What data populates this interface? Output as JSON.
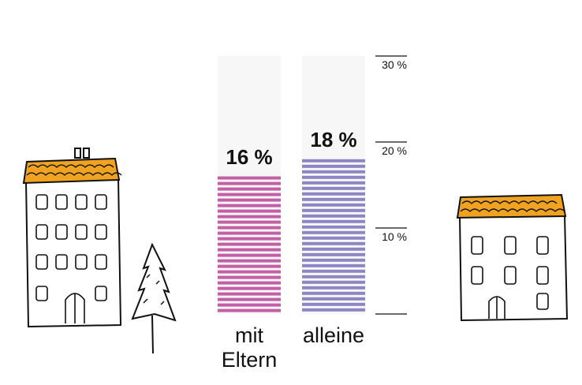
{
  "chart_data": {
    "type": "bar",
    "categories": [
      "mit Eltern",
      "alleine"
    ],
    "category_lines": [
      [
        "mit",
        "Eltern"
      ],
      [
        "alleine"
      ]
    ],
    "values": [
      16,
      18
    ],
    "value_labels": [
      "16 %",
      "18 %"
    ],
    "colors": [
      "#c35fa6",
      "#8c86c2"
    ],
    "ylim": [
      0,
      30
    ],
    "yticks": [
      10,
      20,
      30
    ],
    "ytick_labels": [
      "10 %",
      "20 %",
      "30 %"
    ],
    "title": "",
    "xlabel": "",
    "ylabel": "",
    "grid": false,
    "legend": "none"
  },
  "icons": [
    "apartment-building-icon",
    "pine-tree-icon",
    "small-house-icon"
  ]
}
